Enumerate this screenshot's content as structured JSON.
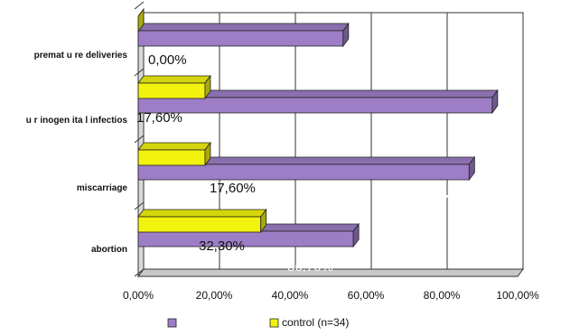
{
  "chart_data": {
    "type": "bar",
    "orientation": "horizontal",
    "style": "3d-clustered-bar",
    "title": "",
    "xlabel": "",
    "ylabel": "",
    "xlim": [
      0,
      100
    ],
    "grid": true,
    "legend_position": "bottom",
    "categories": [
      "abortion",
      "miscarriage",
      "urinogenital infections",
      "premature deliveries"
    ],
    "category_labels": [
      "abortion",
      "miscarriage",
      "u r inogen ita l infectios",
      "premat u re deliveries"
    ],
    "tick_labels": [
      "0,00%",
      "20,00%",
      "40,00%",
      "60,00%",
      "80,00%",
      "100,00%"
    ],
    "tick_values": [
      0,
      20,
      40,
      60,
      80,
      100
    ],
    "series": [
      {
        "name": "",
        "color": "#9d7ec6",
        "values": [
          56.7,
          87.22,
          93.3,
          54
        ],
        "data_labels": [
          "56,70%",
          "87,22%",
          "93,30%",
          ""
        ]
      },
      {
        "name": "control (n=34)",
        "color": "#f2f20f",
        "values": [
          32.3,
          17.6,
          17.6,
          0
        ],
        "data_labels": [
          "32,30%",
          "17,60%",
          "17,60%",
          "0,00%"
        ]
      }
    ]
  }
}
